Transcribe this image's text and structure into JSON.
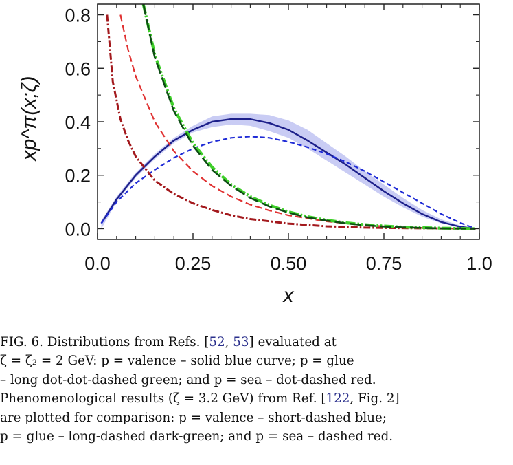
{
  "chart_data": {
    "type": "line",
    "title": "",
    "xlabel": "x",
    "ylabel": "xp^π(x;ζ)",
    "xlim": [
      0,
      1
    ],
    "ylim": [
      -0.04,
      0.84
    ],
    "x_ticks": [
      "0.0",
      "0.25",
      "0.50",
      "0.75",
      "1.0"
    ],
    "y_ticks": [
      "0.0",
      "0.2",
      "0.4",
      "0.6",
      "0.8"
    ],
    "grid": false,
    "legend": "none",
    "series": [
      {
        "style": "solid",
        "color": "#1c1f8a",
        "band_color": "#c9ccf4",
        "points": [
          [
            0.01,
            0.02
          ],
          [
            0.05,
            0.11
          ],
          [
            0.1,
            0.2
          ],
          [
            0.15,
            0.27
          ],
          [
            0.2,
            0.33
          ],
          [
            0.25,
            0.37
          ],
          [
            0.3,
            0.4
          ],
          [
            0.35,
            0.41
          ],
          [
            0.4,
            0.41
          ],
          [
            0.45,
            0.395
          ],
          [
            0.5,
            0.37
          ],
          [
            0.55,
            0.33
          ],
          [
            0.6,
            0.285
          ],
          [
            0.65,
            0.24
          ],
          [
            0.7,
            0.19
          ],
          [
            0.75,
            0.14
          ],
          [
            0.8,
            0.095
          ],
          [
            0.85,
            0.055
          ],
          [
            0.9,
            0.025
          ],
          [
            0.95,
            0.007
          ],
          [
            0.99,
            0.0
          ]
        ],
        "band": [
          [
            0.01,
            0.0,
            0.03
          ],
          [
            0.05,
            0.1,
            0.12
          ],
          [
            0.1,
            0.19,
            0.21
          ],
          [
            0.15,
            0.26,
            0.28
          ],
          [
            0.2,
            0.32,
            0.34
          ],
          [
            0.25,
            0.36,
            0.385
          ],
          [
            0.3,
            0.38,
            0.42
          ],
          [
            0.35,
            0.39,
            0.43
          ],
          [
            0.4,
            0.385,
            0.43
          ],
          [
            0.45,
            0.365,
            0.425
          ],
          [
            0.5,
            0.34,
            0.405
          ],
          [
            0.55,
            0.3,
            0.37
          ],
          [
            0.6,
            0.255,
            0.32
          ],
          [
            0.65,
            0.21,
            0.27
          ],
          [
            0.7,
            0.165,
            0.215
          ],
          [
            0.75,
            0.12,
            0.165
          ],
          [
            0.8,
            0.08,
            0.115
          ],
          [
            0.85,
            0.045,
            0.07
          ],
          [
            0.9,
            0.02,
            0.035
          ],
          [
            0.95,
            0.005,
            0.012
          ],
          [
            0.99,
            0.0,
            0.0
          ]
        ]
      },
      {
        "style": "short-dashed",
        "color": "#1f2bd6",
        "points": [
          [
            0.01,
            0.02
          ],
          [
            0.05,
            0.1
          ],
          [
            0.1,
            0.17
          ],
          [
            0.15,
            0.22
          ],
          [
            0.2,
            0.265
          ],
          [
            0.25,
            0.3
          ],
          [
            0.3,
            0.325
          ],
          [
            0.35,
            0.34
          ],
          [
            0.4,
            0.345
          ],
          [
            0.45,
            0.34
          ],
          [
            0.5,
            0.325
          ],
          [
            0.55,
            0.305
          ],
          [
            0.6,
            0.28
          ],
          [
            0.65,
            0.25
          ],
          [
            0.7,
            0.215
          ],
          [
            0.75,
            0.175
          ],
          [
            0.8,
            0.135
          ],
          [
            0.85,
            0.095
          ],
          [
            0.9,
            0.055
          ],
          [
            0.95,
            0.022
          ],
          [
            0.99,
            0.0
          ]
        ]
      },
      {
        "style": "dot-dot-dashed",
        "color": "#3fcf2a",
        "points": [
          [
            0.12,
            0.84
          ],
          [
            0.15,
            0.65
          ],
          [
            0.2,
            0.45
          ],
          [
            0.25,
            0.32
          ],
          [
            0.3,
            0.23
          ],
          [
            0.35,
            0.165
          ],
          [
            0.4,
            0.12
          ],
          [
            0.45,
            0.088
          ],
          [
            0.5,
            0.063
          ],
          [
            0.55,
            0.045
          ],
          [
            0.6,
            0.032
          ],
          [
            0.65,
            0.022
          ],
          [
            0.7,
            0.015
          ],
          [
            0.75,
            0.01
          ],
          [
            0.8,
            0.006
          ],
          [
            0.9,
            0.002
          ],
          [
            0.99,
            0.0
          ]
        ]
      },
      {
        "style": "long-dashed",
        "color": "#0d4d14",
        "points": [
          [
            0.12,
            0.84
          ],
          [
            0.15,
            0.64
          ],
          [
            0.2,
            0.44
          ],
          [
            0.25,
            0.31
          ],
          [
            0.3,
            0.22
          ],
          [
            0.35,
            0.16
          ],
          [
            0.4,
            0.115
          ],
          [
            0.45,
            0.083
          ],
          [
            0.5,
            0.06
          ],
          [
            0.55,
            0.042
          ],
          [
            0.6,
            0.03
          ],
          [
            0.65,
            0.02
          ],
          [
            0.7,
            0.013
          ],
          [
            0.75,
            0.008
          ],
          [
            0.8,
            0.005
          ],
          [
            0.9,
            0.001
          ],
          [
            0.99,
            0.0
          ]
        ]
      },
      {
        "style": "dot-dashed",
        "color": "#a3191d",
        "points": [
          [
            0.025,
            0.8
          ],
          [
            0.04,
            0.55
          ],
          [
            0.06,
            0.41
          ],
          [
            0.08,
            0.33
          ],
          [
            0.1,
            0.27
          ],
          [
            0.15,
            0.18
          ],
          [
            0.2,
            0.13
          ],
          [
            0.25,
            0.095
          ],
          [
            0.3,
            0.07
          ],
          [
            0.35,
            0.05
          ],
          [
            0.4,
            0.036
          ],
          [
            0.5,
            0.019
          ],
          [
            0.6,
            0.009
          ],
          [
            0.7,
            0.004
          ],
          [
            0.8,
            0.002
          ],
          [
            0.99,
            0.0
          ]
        ]
      },
      {
        "style": "dashed",
        "color": "#e03131",
        "points": [
          [
            0.06,
            0.8
          ],
          [
            0.08,
            0.67
          ],
          [
            0.1,
            0.57
          ],
          [
            0.15,
            0.4
          ],
          [
            0.2,
            0.29
          ],
          [
            0.25,
            0.215
          ],
          [
            0.3,
            0.16
          ],
          [
            0.35,
            0.12
          ],
          [
            0.4,
            0.09
          ],
          [
            0.45,
            0.068
          ],
          [
            0.5,
            0.05
          ],
          [
            0.6,
            0.027
          ],
          [
            0.7,
            0.013
          ],
          [
            0.8,
            0.005
          ],
          [
            0.9,
            0.001
          ],
          [
            0.99,
            0.0
          ]
        ]
      }
    ]
  },
  "caption": {
    "line1": {
      "pre": "FIG. 6.        Distributions from Refs. [",
      "ref1": "52",
      "mid": ",  ",
      "ref2": "53",
      "post": "] evaluated at"
    },
    "line2": "ζ  =  ζ₂  =  2 GeV:  p = valence – solid blue curve;  p = glue",
    "line3": "– long dot-dot-dashed green;  and  p = sea – dot-dashed red.",
    "line4": {
      "pre": "Phenomenological results (ζ = 3.2 GeV) from Ref. [",
      "ref": "122",
      "post": ", Fig. 2]"
    },
    "line5": "are plotted for comparison:  p = valence – short-dashed blue;",
    "line6": "p = glue – long-dashed dark-green; and p = sea – dashed red."
  }
}
